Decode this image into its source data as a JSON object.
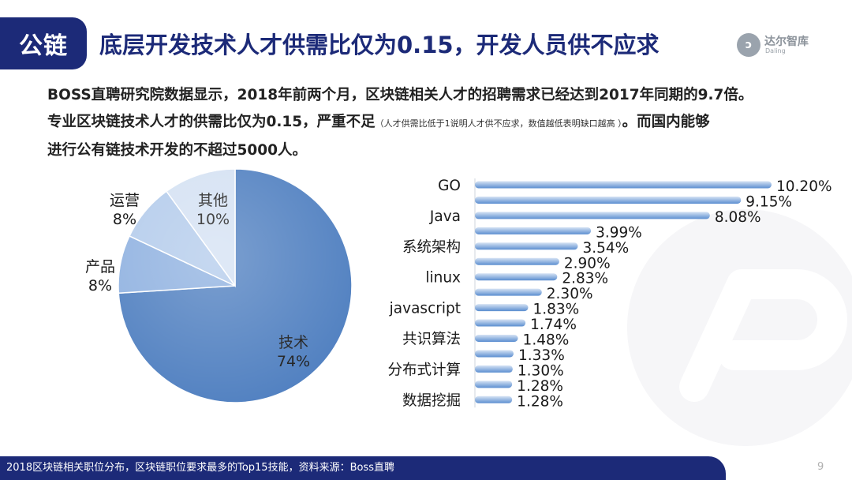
{
  "header": {
    "tag": "公链",
    "title": "底层开发技术人才供需比仅为0.15，开发人员供不应求"
  },
  "logo": {
    "name": "达尔智库",
    "sub": "Daling",
    "icon": "daling-logo-icon"
  },
  "intro": {
    "line1": "BOSS直聘研究院数据显示，2018年前两个月，区块链相关人才的招聘需求已经达到2017年同期的9.7倍。",
    "line2_main": "专业区块链技术人才的供需比仅为0.15，严重不足",
    "line2_note": "（人才供需比低于1说明人才供不应求，数值越低表明缺口越高 ）",
    "line2_end": "。而国内能够",
    "line3": "进行公有链技术开发的不超过5000人。"
  },
  "colors": {
    "brand": "#1c2a78",
    "pie": [
      "#4f7fc0",
      "#8fb1e0",
      "#b3cbeb",
      "#d4e1f3"
    ],
    "bar_light": "#d6e3f4",
    "bar_dark": "#5b8ed0"
  },
  "chart_data": [
    {
      "type": "pie",
      "slices": [
        {
          "label": "技术",
          "value": 74,
          "display": "74%"
        },
        {
          "label": "产品",
          "value": 8,
          "display": "8%"
        },
        {
          "label": "运营",
          "value": 8,
          "display": "8%"
        },
        {
          "label": "其他",
          "value": 10,
          "display": "10%"
        }
      ]
    },
    {
      "type": "bar",
      "orientation": "horizontal",
      "value_labels": [
        "10.20%",
        "9.15%",
        "8.08%",
        "3.99%",
        "3.54%",
        "2.90%",
        "2.83%",
        "2.30%",
        "1.83%",
        "1.74%",
        "1.48%",
        "1.33%",
        "1.30%",
        "1.28%",
        "1.28%"
      ],
      "values": [
        10.2,
        9.15,
        8.08,
        3.99,
        3.54,
        2.9,
        2.83,
        2.3,
        1.83,
        1.74,
        1.48,
        1.33,
        1.3,
        1.28,
        1.28
      ],
      "visible_category_labels": [
        {
          "row": 0,
          "text": "GO"
        },
        {
          "row": 2,
          "text": "Java"
        },
        {
          "row": 4,
          "text": "系统架构"
        },
        {
          "row": 6,
          "text": "linux"
        },
        {
          "row": 8,
          "text": "javascript"
        },
        {
          "row": 10,
          "text": "共识算法"
        },
        {
          "row": 12,
          "text": "分布式计算"
        },
        {
          "row": 14,
          "text": "数据挖掘"
        }
      ],
      "xlim": [
        0,
        10.2
      ]
    }
  ],
  "footer": {
    "caption": "2018区块链相关职位分布，区块链职位要求最多的Top15技能，资料来源：Boss直聘",
    "page": "9"
  }
}
